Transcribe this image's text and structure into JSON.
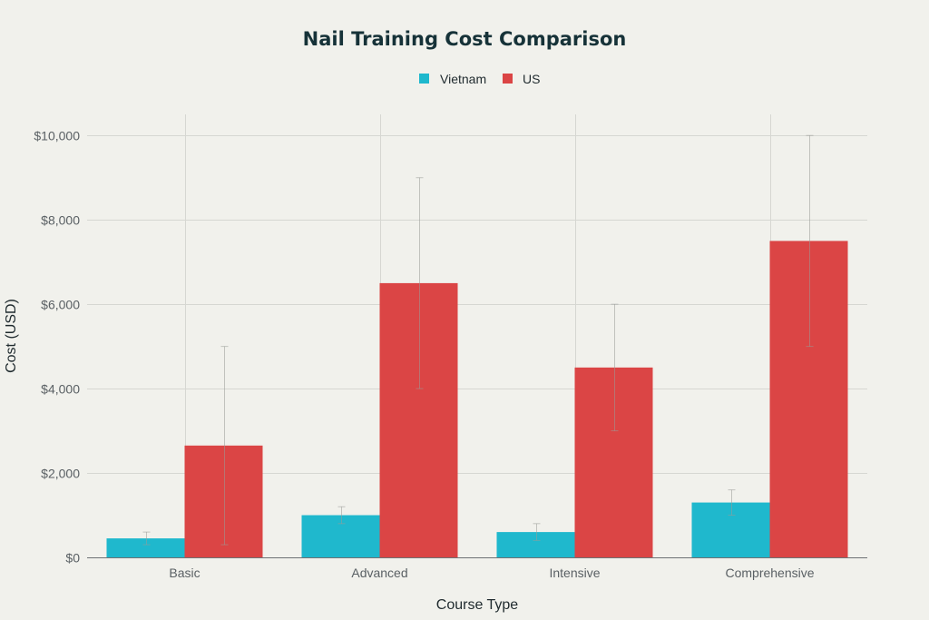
{
  "chart_data": {
    "type": "bar",
    "title": "Nail Training Cost Comparison",
    "xlabel": "Course Type",
    "ylabel": "Cost (USD)",
    "categories": [
      "Basic",
      "Advanced",
      "Intensive",
      "Comprehensive"
    ],
    "ylim": [
      0,
      10500
    ],
    "yticks": [
      0,
      2000,
      4000,
      6000,
      8000,
      10000
    ],
    "ytick_labels": [
      "$0",
      "$2,000",
      "$4,000",
      "$6,000",
      "$8,000",
      "$10,000"
    ],
    "legend_position": "top-center",
    "grid": true,
    "series": [
      {
        "name": "Vietnam",
        "color": "#1fb8cd",
        "values": [
          450,
          1000,
          600,
          1300
        ],
        "error_low": [
          300,
          800,
          400,
          1000
        ],
        "error_high": [
          600,
          1200,
          800,
          1600
        ]
      },
      {
        "name": "US",
        "color": "#db4545",
        "values": [
          2650,
          6500,
          4500,
          7500
        ],
        "error_low": [
          300,
          4000,
          3000,
          5000
        ],
        "error_high": [
          5000,
          9000,
          6000,
          10000
        ]
      }
    ]
  }
}
